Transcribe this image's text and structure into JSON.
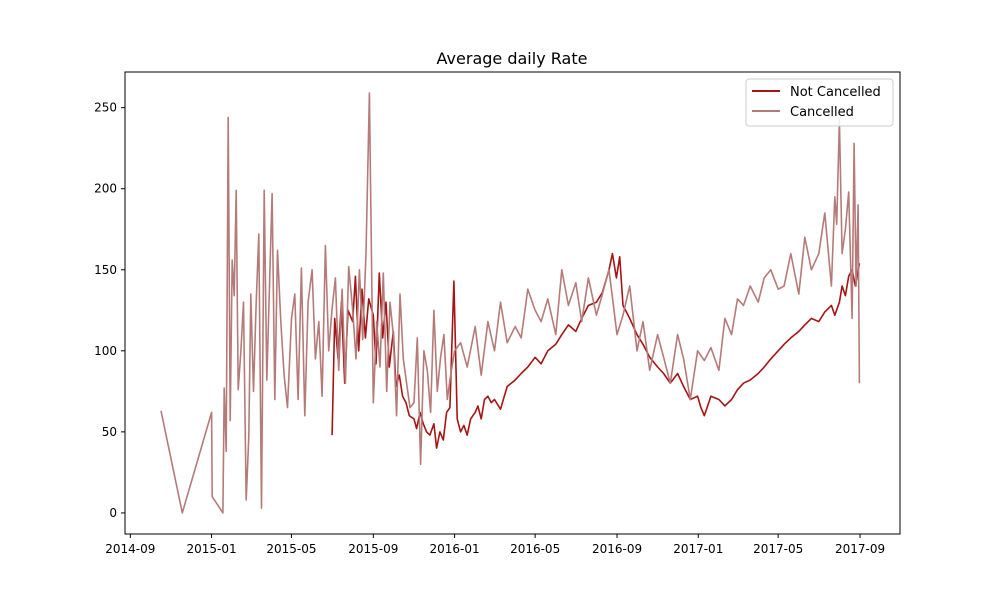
{
  "chart_data": {
    "type": "line",
    "title": "Average daily Rate",
    "xlabel": "",
    "ylabel": "",
    "x_type": "date",
    "xlim": [
      "2014-08-24",
      "2017-10-31"
    ],
    "ylim": [
      -13,
      272
    ],
    "x_ticks": [
      "2014-09",
      "2015-01",
      "2015-05",
      "2015-09",
      "2016-01",
      "2016-05",
      "2016-09",
      "2017-01",
      "2017-05",
      "2017-09"
    ],
    "x_tick_dates": [
      "2014-09-01",
      "2015-01-01",
      "2015-05-01",
      "2015-09-01",
      "2016-01-01",
      "2016-05-01",
      "2016-09-01",
      "2017-01-01",
      "2017-05-01",
      "2017-09-01"
    ],
    "y_ticks": [
      0,
      50,
      100,
      150,
      200,
      250
    ],
    "grid": false,
    "legend": "top-right",
    "series": [
      {
        "name": "Not Cancelled",
        "color": "#a51515",
        "x": [
          "2015-07-01",
          "2015-07-05",
          "2015-07-10",
          "2015-07-15",
          "2015-07-20",
          "2015-07-25",
          "2015-08-01",
          "2015-08-05",
          "2015-08-10",
          "2015-08-15",
          "2015-08-20",
          "2015-08-25",
          "2015-09-01",
          "2015-09-05",
          "2015-09-10",
          "2015-09-15",
          "2015-09-20",
          "2015-09-25",
          "2015-10-01",
          "2015-10-05",
          "2015-10-10",
          "2015-10-15",
          "2015-10-20",
          "2015-10-25",
          "2015-11-01",
          "2015-11-05",
          "2015-11-10",
          "2015-11-15",
          "2015-11-20",
          "2015-11-25",
          "2015-12-01",
          "2015-12-05",
          "2015-12-10",
          "2015-12-15",
          "2015-12-20",
          "2015-12-25",
          "2015-12-31",
          "2016-01-05",
          "2016-01-10",
          "2016-01-15",
          "2016-01-20",
          "2016-01-25",
          "2016-02-01",
          "2016-02-05",
          "2016-02-10",
          "2016-02-15",
          "2016-02-20",
          "2016-02-25",
          "2016-03-01",
          "2016-03-10",
          "2016-03-20",
          "2016-04-01",
          "2016-04-10",
          "2016-04-20",
          "2016-05-01",
          "2016-05-10",
          "2016-05-20",
          "2016-06-01",
          "2016-06-10",
          "2016-06-20",
          "2016-07-01",
          "2016-07-10",
          "2016-07-20",
          "2016-08-01",
          "2016-08-10",
          "2016-08-20",
          "2016-08-25",
          "2016-08-31",
          "2016-09-05",
          "2016-09-10",
          "2016-09-20",
          "2016-10-01",
          "2016-10-10",
          "2016-10-20",
          "2016-11-01",
          "2016-11-10",
          "2016-11-20",
          "2016-12-01",
          "2016-12-10",
          "2016-12-20",
          "2016-12-31",
          "2017-01-05",
          "2017-01-10",
          "2017-01-20",
          "2017-02-01",
          "2017-02-10",
          "2017-02-20",
          "2017-03-01",
          "2017-03-10",
          "2017-03-20",
          "2017-04-01",
          "2017-04-10",
          "2017-04-20",
          "2017-05-01",
          "2017-05-10",
          "2017-05-20",
          "2017-06-01",
          "2017-06-10",
          "2017-06-20",
          "2017-07-01",
          "2017-07-10",
          "2017-07-20",
          "2017-07-25",
          "2017-08-01",
          "2017-08-05",
          "2017-08-10",
          "2017-08-15",
          "2017-08-20",
          "2017-08-25",
          "2017-08-31"
        ],
        "values": [
          48,
          120,
          95,
          130,
          80,
          125,
          118,
          146,
          100,
          138,
          108,
          132,
          122,
          92,
          148,
          108,
          130,
          90,
          112,
          78,
          85,
          72,
          68,
          60,
          58,
          52,
          62,
          55,
          50,
          48,
          55,
          40,
          50,
          45,
          62,
          65,
          143,
          58,
          50,
          54,
          48,
          58,
          62,
          66,
          58,
          70,
          72,
          68,
          70,
          64,
          78,
          82,
          86,
          90,
          96,
          92,
          100,
          104,
          110,
          116,
          112,
          120,
          128,
          130,
          136,
          150,
          160,
          145,
          158,
          128,
          120,
          110,
          104,
          96,
          90,
          86,
          80,
          86,
          78,
          70,
          72,
          65,
          60,
          72,
          70,
          66,
          70,
          76,
          80,
          82,
          86,
          90,
          95,
          100,
          104,
          108,
          112,
          116,
          120,
          118,
          124,
          128,
          122,
          130,
          140,
          134,
          146,
          150,
          140,
          154
        ]
      },
      {
        "name": "Cancelled",
        "color": "#b57b79",
        "x": [
          "2014-10-17",
          "2014-11-18",
          "2015-01-01",
          "2015-01-02",
          "2015-01-18",
          "2015-01-20",
          "2015-01-23",
          "2015-01-26",
          "2015-01-29",
          "2015-02-01",
          "2015-02-04",
          "2015-02-07",
          "2015-02-10",
          "2015-02-14",
          "2015-02-18",
          "2015-02-22",
          "2015-02-26",
          "2015-03-01",
          "2015-03-05",
          "2015-03-09",
          "2015-03-13",
          "2015-03-17",
          "2015-03-21",
          "2015-03-25",
          "2015-03-29",
          "2015-04-02",
          "2015-04-06",
          "2015-04-10",
          "2015-04-15",
          "2015-04-20",
          "2015-04-25",
          "2015-05-01",
          "2015-05-06",
          "2015-05-11",
          "2015-05-16",
          "2015-05-21",
          "2015-05-26",
          "2015-06-01",
          "2015-06-06",
          "2015-06-11",
          "2015-06-16",
          "2015-06-21",
          "2015-06-26",
          "2015-07-01",
          "2015-07-06",
          "2015-07-11",
          "2015-07-16",
          "2015-07-21",
          "2015-07-26",
          "2015-08-01",
          "2015-08-06",
          "2015-08-11",
          "2015-08-16",
          "2015-08-21",
          "2015-08-26",
          "2015-09-01",
          "2015-09-06",
          "2015-09-11",
          "2015-09-16",
          "2015-09-21",
          "2015-09-26",
          "2015-10-01",
          "2015-10-06",
          "2015-10-11",
          "2015-10-16",
          "2015-10-21",
          "2015-10-26",
          "2015-11-01",
          "2015-11-06",
          "2015-11-11",
          "2015-11-16",
          "2015-11-21",
          "2015-11-26",
          "2015-12-01",
          "2015-12-06",
          "2015-12-11",
          "2015-12-16",
          "2015-12-21",
          "2015-12-26",
          "2016-01-01",
          "2016-01-10",
          "2016-01-20",
          "2016-02-01",
          "2016-02-10",
          "2016-02-20",
          "2016-03-01",
          "2016-03-10",
          "2016-03-20",
          "2016-04-01",
          "2016-04-10",
          "2016-04-20",
          "2016-05-01",
          "2016-05-10",
          "2016-05-20",
          "2016-06-01",
          "2016-06-10",
          "2016-06-20",
          "2016-07-01",
          "2016-07-10",
          "2016-07-20",
          "2016-08-01",
          "2016-08-10",
          "2016-08-20",
          "2016-09-01",
          "2016-09-10",
          "2016-09-20",
          "2016-10-01",
          "2016-10-10",
          "2016-10-20",
          "2016-11-01",
          "2016-11-10",
          "2016-11-20",
          "2016-12-01",
          "2016-12-10",
          "2016-12-20",
          "2016-12-31",
          "2017-01-10",
          "2017-01-20",
          "2017-02-01",
          "2017-02-10",
          "2017-02-20",
          "2017-03-01",
          "2017-03-10",
          "2017-03-20",
          "2017-04-01",
          "2017-04-10",
          "2017-04-20",
          "2017-05-01",
          "2017-05-10",
          "2017-05-20",
          "2017-06-01",
          "2017-06-10",
          "2017-06-20",
          "2017-07-01",
          "2017-07-10",
          "2017-07-20",
          "2017-07-25",
          "2017-07-28",
          "2017-08-01",
          "2017-08-05",
          "2017-08-10",
          "2017-08-15",
          "2017-08-20",
          "2017-08-23",
          "2017-08-26",
          "2017-08-29",
          "2017-08-31"
        ],
        "values": [
          63,
          0,
          62,
          10,
          0,
          77,
          38,
          244,
          57,
          156,
          134,
          199,
          76,
          100,
          130,
          8,
          47,
          135,
          75,
          130,
          172,
          3,
          199,
          82,
          140,
          197,
          70,
          162,
          118,
          85,
          65,
          120,
          135,
          70,
          151,
          60,
          130,
          150,
          95,
          118,
          72,
          165,
          100,
          126,
          145,
          88,
          138,
          80,
          152,
          125,
          95,
          150,
          107,
          160,
          259,
          68,
          118,
          90,
          148,
          75,
          130,
          110,
          60,
          135,
          95,
          80,
          65,
          68,
          108,
          30,
          100,
          88,
          62,
          125,
          75,
          96,
          110,
          70,
          85,
          100,
          105,
          90,
          115,
          85,
          118,
          100,
          130,
          105,
          115,
          108,
          138,
          125,
          118,
          132,
          110,
          150,
          128,
          142,
          118,
          145,
          122,
          135,
          150,
          110,
          122,
          140,
          100,
          118,
          88,
          110,
          96,
          80,
          110,
          95,
          70,
          100,
          94,
          102,
          88,
          120,
          110,
          132,
          128,
          140,
          130,
          145,
          150,
          138,
          140,
          160,
          135,
          170,
          150,
          160,
          185,
          140,
          195,
          178,
          242,
          160,
          175,
          198,
          120,
          228,
          140,
          190,
          80
        ]
      }
    ]
  }
}
